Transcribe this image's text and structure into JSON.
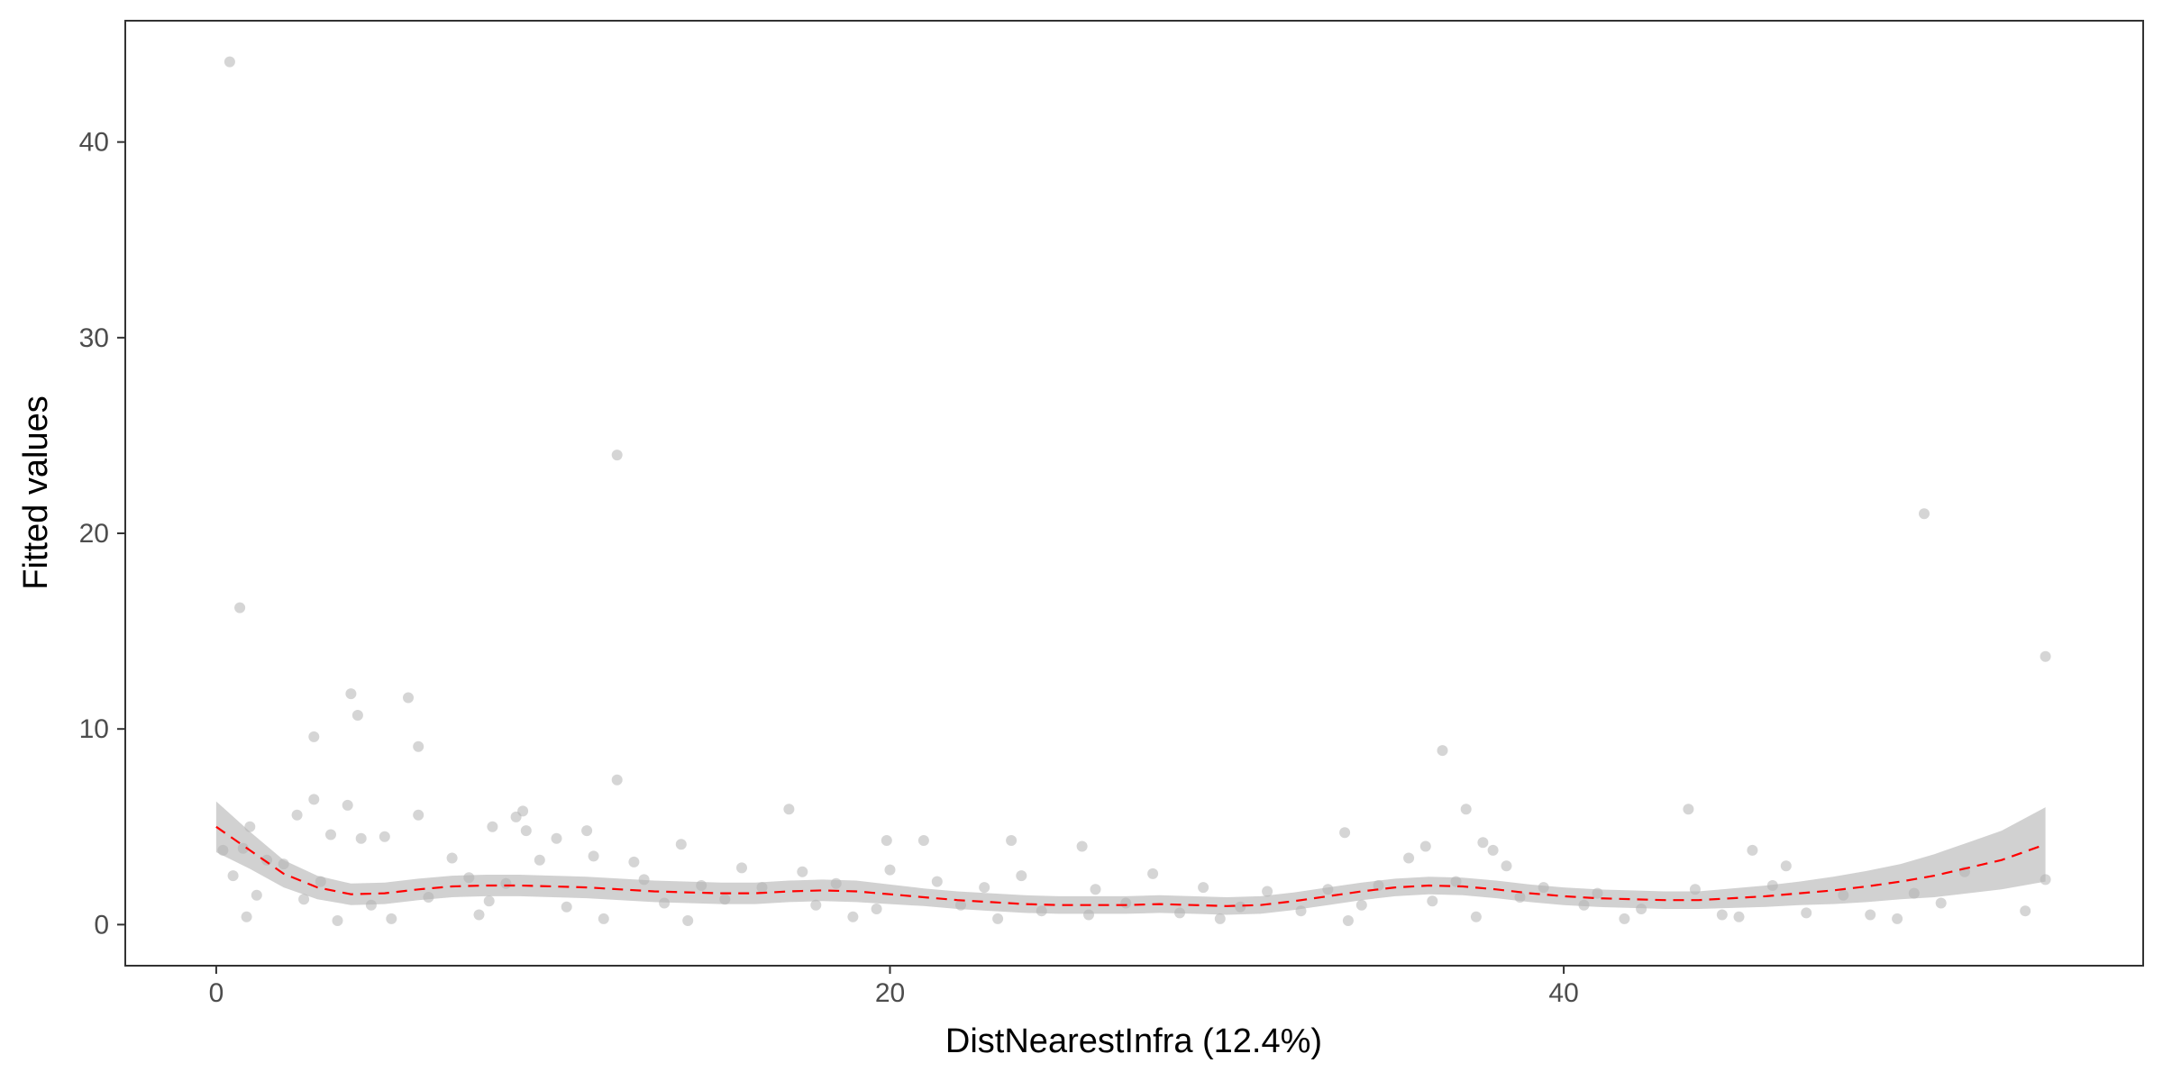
{
  "chart_data": {
    "type": "scatter",
    "title": "",
    "xlabel": "DistNearestInfra  (12.4%)",
    "ylabel": "Fitted values",
    "xlim": [
      -2.7,
      57.2
    ],
    "ylim": [
      -2.1,
      46.2
    ],
    "x_ticks": [
      0,
      20,
      40
    ],
    "y_ticks": [
      0,
      10,
      20,
      30,
      40
    ],
    "grid": false,
    "legend": "none",
    "colors": {
      "points": "#b3b3b3",
      "smooth_line": "#ff0000",
      "confidence_band": "#bdbdbd",
      "panel_border": "#333333"
    },
    "series": [
      {
        "kind": "points",
        "points": [
          [
            0.4,
            44.1
          ],
          [
            0.7,
            16.2
          ],
          [
            11.9,
            24.0
          ],
          [
            50.7,
            21.0
          ],
          [
            54.3,
            13.7
          ],
          [
            4.0,
            11.8
          ],
          [
            5.7,
            11.6
          ],
          [
            4.2,
            10.7
          ],
          [
            2.9,
            9.6
          ],
          [
            6.0,
            9.1
          ],
          [
            36.4,
            8.9
          ],
          [
            11.9,
            7.4
          ],
          [
            2.9,
            6.4
          ],
          [
            3.9,
            6.1
          ],
          [
            17.0,
            5.9
          ],
          [
            37.1,
            5.9
          ],
          [
            43.7,
            5.9
          ],
          [
            9.1,
            5.8
          ],
          [
            2.4,
            5.6
          ],
          [
            6.0,
            5.6
          ],
          [
            8.9,
            5.5
          ],
          [
            1.0,
            5.0
          ],
          [
            8.2,
            5.0
          ],
          [
            9.2,
            4.8
          ],
          [
            11.0,
            4.8
          ],
          [
            33.5,
            4.7
          ],
          [
            3.4,
            4.6
          ],
          [
            4.3,
            4.4
          ],
          [
            5.0,
            4.5
          ],
          [
            10.1,
            4.4
          ],
          [
            19.9,
            4.3
          ],
          [
            21.0,
            4.3
          ],
          [
            23.6,
            4.3
          ],
          [
            37.6,
            4.2
          ],
          [
            13.8,
            4.1
          ],
          [
            35.9,
            4.0
          ],
          [
            25.7,
            4.0
          ],
          [
            0.8,
            3.9
          ],
          [
            37.9,
            3.8
          ],
          [
            45.6,
            3.8
          ],
          [
            0.2,
            3.8
          ],
          [
            11.2,
            3.5
          ],
          [
            35.4,
            3.4
          ],
          [
            7.0,
            3.4
          ],
          [
            1.5,
            3.3
          ],
          [
            9.6,
            3.3
          ],
          [
            12.4,
            3.2
          ],
          [
            2.0,
            3.1
          ],
          [
            46.6,
            3.0
          ],
          [
            38.3,
            3.0
          ],
          [
            15.6,
            2.9
          ],
          [
            17.4,
            2.7
          ],
          [
            23.9,
            2.5
          ],
          [
            20.0,
            2.8
          ],
          [
            27.8,
            2.6
          ],
          [
            51.9,
            2.7
          ],
          [
            0.5,
            2.5
          ],
          [
            3.1,
            2.2
          ],
          [
            7.5,
            2.4
          ],
          [
            8.6,
            2.1
          ],
          [
            12.7,
            2.3
          ],
          [
            14.4,
            2.0
          ],
          [
            16.2,
            1.9
          ],
          [
            18.4,
            2.1
          ],
          [
            21.4,
            2.2
          ],
          [
            22.8,
            1.9
          ],
          [
            26.1,
            1.8
          ],
          [
            29.3,
            1.9
          ],
          [
            31.2,
            1.7
          ],
          [
            33.0,
            1.8
          ],
          [
            34.5,
            2.0
          ],
          [
            36.8,
            2.2
          ],
          [
            39.4,
            1.9
          ],
          [
            41.0,
            1.6
          ],
          [
            43.9,
            1.8
          ],
          [
            46.2,
            2.0
          ],
          [
            48.3,
            1.5
          ],
          [
            50.4,
            1.6
          ],
          [
            54.3,
            2.3
          ],
          [
            1.2,
            1.5
          ],
          [
            2.6,
            1.3
          ],
          [
            4.6,
            1.0
          ],
          [
            6.3,
            1.4
          ],
          [
            8.1,
            1.2
          ],
          [
            10.4,
            0.9
          ],
          [
            13.3,
            1.1
          ],
          [
            15.1,
            1.3
          ],
          [
            17.8,
            1.0
          ],
          [
            19.6,
            0.8
          ],
          [
            22.1,
            1.0
          ],
          [
            24.5,
            0.7
          ],
          [
            27.0,
            1.1
          ],
          [
            28.6,
            0.6
          ],
          [
            30.4,
            0.9
          ],
          [
            32.2,
            0.7
          ],
          [
            34.0,
            1.0
          ],
          [
            36.1,
            1.2
          ],
          [
            38.7,
            1.4
          ],
          [
            40.6,
            1.0
          ],
          [
            42.3,
            0.8
          ],
          [
            44.7,
            0.5
          ],
          [
            47.2,
            0.6
          ],
          [
            49.1,
            0.5
          ],
          [
            51.2,
            1.1
          ],
          [
            53.7,
            0.7
          ],
          [
            0.9,
            0.4
          ],
          [
            3.6,
            0.2
          ],
          [
            5.2,
            0.3
          ],
          [
            7.8,
            0.5
          ],
          [
            11.5,
            0.3
          ],
          [
            14.0,
            0.2
          ],
          [
            18.9,
            0.4
          ],
          [
            23.2,
            0.3
          ],
          [
            25.9,
            0.5
          ],
          [
            29.8,
            0.3
          ],
          [
            33.6,
            0.2
          ],
          [
            37.4,
            0.4
          ],
          [
            41.8,
            0.3
          ],
          [
            45.2,
            0.4
          ],
          [
            49.9,
            0.3
          ]
        ]
      },
      {
        "kind": "smooth",
        "points": [
          [
            0,
            5.0
          ],
          [
            1,
            3.8
          ],
          [
            2,
            2.6
          ],
          [
            3,
            1.9
          ],
          [
            4,
            1.55
          ],
          [
            5,
            1.6
          ],
          [
            6,
            1.8
          ],
          [
            7,
            1.95
          ],
          [
            8,
            2.0
          ],
          [
            9,
            2.0
          ],
          [
            10,
            1.95
          ],
          [
            11,
            1.9
          ],
          [
            12,
            1.8
          ],
          [
            13,
            1.7
          ],
          [
            14,
            1.65
          ],
          [
            15,
            1.6
          ],
          [
            16,
            1.6
          ],
          [
            17,
            1.7
          ],
          [
            18,
            1.75
          ],
          [
            19,
            1.7
          ],
          [
            20,
            1.55
          ],
          [
            21,
            1.4
          ],
          [
            22,
            1.25
          ],
          [
            23,
            1.15
          ],
          [
            24,
            1.05
          ],
          [
            25,
            1.0
          ],
          [
            26,
            1.0
          ],
          [
            27,
            1.0
          ],
          [
            28,
            1.05
          ],
          [
            29,
            1.0
          ],
          [
            30,
            0.95
          ],
          [
            31,
            1.0
          ],
          [
            32,
            1.2
          ],
          [
            33,
            1.45
          ],
          [
            34,
            1.7
          ],
          [
            35,
            1.9
          ],
          [
            36,
            2.0
          ],
          [
            37,
            1.95
          ],
          [
            38,
            1.8
          ],
          [
            39,
            1.6
          ],
          [
            40,
            1.45
          ],
          [
            41,
            1.35
          ],
          [
            42,
            1.3
          ],
          [
            43,
            1.25
          ],
          [
            44,
            1.25
          ],
          [
            45,
            1.35
          ],
          [
            46,
            1.45
          ],
          [
            47,
            1.6
          ],
          [
            48,
            1.75
          ],
          [
            49,
            1.95
          ],
          [
            50,
            2.2
          ],
          [
            51,
            2.5
          ],
          [
            52,
            2.9
          ],
          [
            53,
            3.3
          ],
          [
            54.3,
            4.1
          ]
        ],
        "ci_halfwidth": [
          1.3,
          0.95,
          0.7,
          0.6,
          0.55,
          0.55,
          0.55,
          0.55,
          0.55,
          0.55,
          0.55,
          0.55,
          0.55,
          0.55,
          0.55,
          0.55,
          0.55,
          0.55,
          0.55,
          0.55,
          0.5,
          0.45,
          0.45,
          0.45,
          0.45,
          0.45,
          0.45,
          0.45,
          0.45,
          0.45,
          0.45,
          0.45,
          0.45,
          0.45,
          0.45,
          0.45,
          0.45,
          0.45,
          0.45,
          0.45,
          0.45,
          0.45,
          0.45,
          0.45,
          0.45,
          0.5,
          0.55,
          0.6,
          0.7,
          0.8,
          0.9,
          1.1,
          1.3,
          1.5,
          1.9
        ]
      }
    ]
  }
}
